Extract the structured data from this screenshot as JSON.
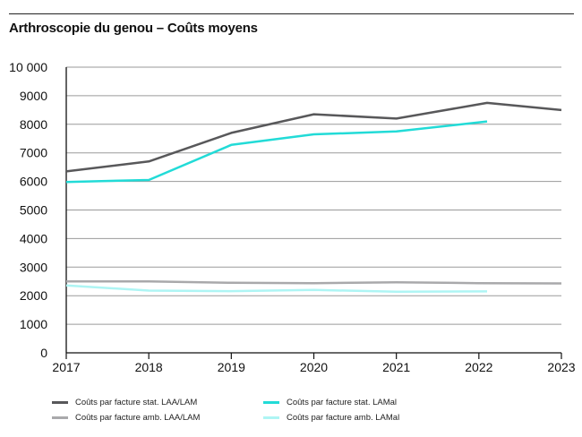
{
  "chart_data": {
    "type": "line",
    "title": "Arthroscopie du genou – Coûts moyens",
    "xlabel": "",
    "ylabel": "",
    "x": [
      2017,
      2018,
      2019,
      2020,
      2021,
      2022,
      2023
    ],
    "x_tick_labels": [
      "2017",
      "2018",
      "2019",
      "2020",
      "2021",
      "2022",
      "2023"
    ],
    "y_ticks": [
      0,
      1000,
      2000,
      3000,
      4000,
      5000,
      6000,
      7000,
      8000,
      9000,
      10000
    ],
    "y_tick_labels": [
      "0",
      "1000",
      "2000",
      "3000",
      "4000",
      "5000",
      "6000",
      "7000",
      "8000",
      "9000",
      "10 000"
    ],
    "ylim": [
      0,
      10000
    ],
    "xlim": [
      2017,
      2023
    ],
    "grid": true,
    "series": [
      {
        "name": "Coûts par facture stat. LAA/LAM",
        "color": "#58585a",
        "points": [
          [
            2017,
            6350
          ],
          [
            2018,
            6700
          ],
          [
            2019,
            7700
          ],
          [
            2020,
            8350
          ],
          [
            2021,
            8200
          ],
          [
            2022.1,
            8750
          ],
          [
            2023,
            8500
          ]
        ]
      },
      {
        "name": "Coûts par facture amb. LAA/LAM",
        "color": "#a9a9ab",
        "points": [
          [
            2017,
            2500
          ],
          [
            2018,
            2500
          ],
          [
            2019,
            2450
          ],
          [
            2020,
            2440
          ],
          [
            2021,
            2470
          ],
          [
            2022,
            2440
          ],
          [
            2023,
            2430
          ]
        ]
      },
      {
        "name": "Coûts par facture stat. LAMal",
        "color": "#22dbd7",
        "points": [
          [
            2017,
            5980
          ],
          [
            2018,
            6050
          ],
          [
            2019,
            7280
          ],
          [
            2020,
            7650
          ],
          [
            2021,
            7750
          ],
          [
            2022.1,
            8100
          ]
        ]
      },
      {
        "name": "Coûts par facture amb. LAMal",
        "color": "#aef5f4",
        "points": [
          [
            2017,
            2360
          ],
          [
            2018,
            2180
          ],
          [
            2019,
            2160
          ],
          [
            2020,
            2200
          ],
          [
            2021,
            2140
          ],
          [
            2022.1,
            2150
          ]
        ]
      }
    ],
    "legend_position": "bottom"
  },
  "legend": {
    "items": [
      {
        "label": "Coûts par facture stat. LAA/LAM",
        "color": "#58585a"
      },
      {
        "label": "Coûts par facture amb. LAA/LAM",
        "color": "#a9a9ab"
      },
      {
        "label": "Coûts par facture stat. LAMal",
        "color": "#22dbd7"
      },
      {
        "label": "Coûts par facture amb. LAMal",
        "color": "#aef5f4"
      }
    ]
  }
}
